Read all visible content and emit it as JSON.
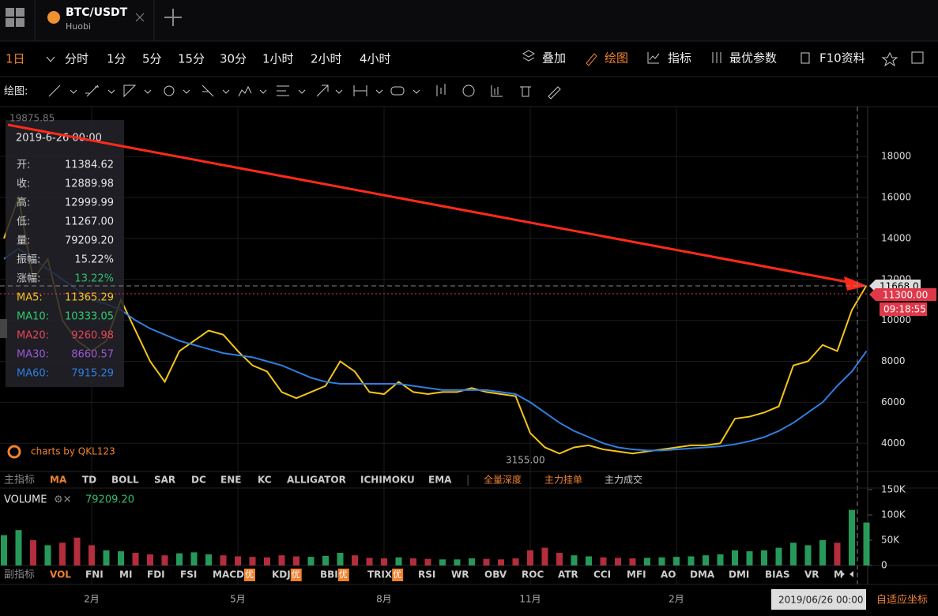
{
  "tabs": [
    {
      "symbol": "BTC/USDT",
      "exchange": "Huobi"
    }
  ],
  "periods": [
    "1日",
    "分时",
    "1分",
    "5分",
    "15分",
    "30分",
    "1小时",
    "2小时",
    "4小时"
  ],
  "tools": [
    "叠加",
    "绘图",
    "指标",
    "最优参数",
    "F10资料"
  ],
  "draw_label": "绘图:",
  "info": {
    "date": "2019-6-26 00:00",
    "rows": [
      {
        "label": "开:",
        "value": "11384.62",
        "color": "#e6e6e6"
      },
      {
        "label": "收:",
        "value": "12889.98",
        "color": "#e6e6e6"
      },
      {
        "label": "高:",
        "value": "12999.99",
        "color": "#e6e6e6"
      },
      {
        "label": "低:",
        "value": "11267.00",
        "color": "#e6e6e6"
      },
      {
        "label": "量:",
        "value": "79209.20",
        "color": "#e6e6e6"
      },
      {
        "label": "振幅:",
        "value": "15.22%",
        "color": "#e6e6e6"
      },
      {
        "label": "涨幅:",
        "value": "13.22%",
        "color": "#2fbf71"
      },
      {
        "label": "MA5:",
        "value": "11365.29",
        "color": "#f5c518"
      },
      {
        "label": "MA10:",
        "value": "10333.05",
        "color": "#2ecc71"
      },
      {
        "label": "MA20:",
        "value": "9260.98",
        "color": "#e8455a"
      },
      {
        "label": "MA30:",
        "value": "8660.57",
        "color": "#9b59d6"
      },
      {
        "label": "MA60:",
        "value": "7915.29",
        "color": "#2f7fe0"
      }
    ]
  },
  "annotations": {
    "high": "19875.85",
    "low": "3155.00",
    "last_price": "11668.0",
    "cursor_price": "11300.00",
    "countdown": "09:18:55",
    "cursor_date": "2019/06/26 00:00",
    "watermark": "charts by QKL123",
    "adaptive": "自适应坐标"
  },
  "main_indicator_label": "主指标",
  "main_indicators": [
    "MA",
    "TD",
    "BOLL",
    "SAR",
    "DC",
    "ENE",
    "KC",
    "ALLIGATOR",
    "ICHIMOKU",
    "EMA"
  ],
  "depth_tools": [
    "全量深度",
    "主力挂单",
    "主力成交"
  ],
  "volume": {
    "label": "VOLUME",
    "value": "79209.20"
  },
  "sub_indicator_label": "副指标",
  "sub_indicators": [
    {
      "name": "VOL"
    },
    {
      "name": "FNI"
    },
    {
      "name": "MI"
    },
    {
      "name": "FDI"
    },
    {
      "name": "FSI"
    },
    {
      "name": "MACD",
      "badge": "优"
    },
    {
      "name": "KDJ",
      "badge": "优"
    },
    {
      "name": "BBI",
      "badge": "优"
    },
    {
      "name": "TRIX",
      "badge": "优"
    },
    {
      "name": "RSI"
    },
    {
      "name": "WR"
    },
    {
      "name": "OBV"
    },
    {
      "name": "ROC"
    },
    {
      "name": "ATR"
    },
    {
      "name": "CCI"
    },
    {
      "name": "MFI"
    },
    {
      "name": "AO"
    },
    {
      "name": "DMA"
    },
    {
      "name": "DMI"
    },
    {
      "name": "BIAS"
    },
    {
      "name": "VR"
    },
    {
      "name": "M"
    }
  ],
  "chart_data": [
    {
      "type": "line",
      "categories": [
        null,
        null,
        null,
        null,
        null,
        null,
        "2月",
        null,
        null,
        null,
        null,
        null,
        null,
        null,
        null,
        null,
        "5月",
        null,
        null,
        null,
        null,
        null,
        null,
        null,
        null,
        null,
        "8月",
        null,
        null,
        null,
        null,
        null,
        null,
        null,
        null,
        null,
        "11月",
        null,
        null,
        null,
        null,
        null,
        null,
        null,
        null,
        null,
        "2月",
        null,
        null,
        null,
        null,
        null,
        null,
        null,
        null,
        null,
        null,
        null,
        null,
        null
      ],
      "series": [
        {
          "name": "MA5",
          "color": "#f5c518",
          "values": [
            14000,
            16000,
            12000,
            13000,
            10000,
            9000,
            8500,
            9000,
            11000,
            9500,
            8000,
            7000,
            8500,
            9000,
            9500,
            9300,
            8500,
            7800,
            7500,
            6500,
            6200,
            6500,
            6800,
            8000,
            7500,
            6500,
            6400,
            7000,
            6500,
            6400,
            6500,
            6500,
            6700,
            6500,
            6400,
            6300,
            4500,
            3800,
            3500,
            3800,
            3900,
            3700,
            3600,
            3500,
            3600,
            3700,
            3800,
            3900,
            3900,
            4000,
            5200,
            5300,
            5500,
            5800,
            7800,
            8000,
            8800,
            8500,
            10500,
            11700
          ]
        },
        {
          "name": "MA60",
          "color": "#2f7fe0",
          "values": [
            13000,
            13500,
            13000,
            12500,
            12000,
            11500,
            11000,
            10800,
            10500,
            10000,
            9600,
            9300,
            9000,
            8800,
            8600,
            8400,
            8300,
            8200,
            8000,
            7800,
            7500,
            7200,
            7000,
            6900,
            6900,
            6900,
            6900,
            6900,
            6800,
            6700,
            6600,
            6600,
            6600,
            6600,
            6500,
            6400,
            6000,
            5500,
            5000,
            4600,
            4300,
            4000,
            3800,
            3700,
            3650,
            3650,
            3700,
            3750,
            3800,
            3850,
            3950,
            4100,
            4300,
            4600,
            5000,
            5500,
            6000,
            6800,
            7500,
            8500
          ]
        }
      ],
      "ylim": [
        2700,
        20240
      ],
      "yticks": [
        4000,
        6000,
        8000,
        10000,
        12000,
        14000,
        16000,
        18000
      ],
      "grid": true
    },
    {
      "type": "bar",
      "up_color": "#2fbf71",
      "down_color": "#e0384b",
      "values": [
        60000,
        70000,
        50000,
        40000,
        45000,
        55000,
        40000,
        30000,
        28000,
        25000,
        22000,
        20000,
        24000,
        26000,
        22000,
        20000,
        18000,
        17000,
        16000,
        20000,
        18000,
        17000,
        19000,
        25000,
        20000,
        15000,
        14000,
        16000,
        14000,
        13000,
        12000,
        12000,
        14000,
        13000,
        12000,
        14000,
        30000,
        35000,
        25000,
        20000,
        18000,
        16000,
        15000,
        14000,
        15000,
        16000,
        17000,
        18000,
        20000,
        22000,
        30000,
        28000,
        30000,
        35000,
        45000,
        40000,
        50000,
        45000,
        110000,
        85000
      ],
      "ylim": [
        0,
        162500
      ],
      "yticks": [
        0,
        {
          "value": 50000,
          "label": "50K"
        },
        {
          "value": 100000,
          "label": "100K"
        },
        {
          "value": 150000,
          "label": "150K"
        }
      ]
    }
  ]
}
